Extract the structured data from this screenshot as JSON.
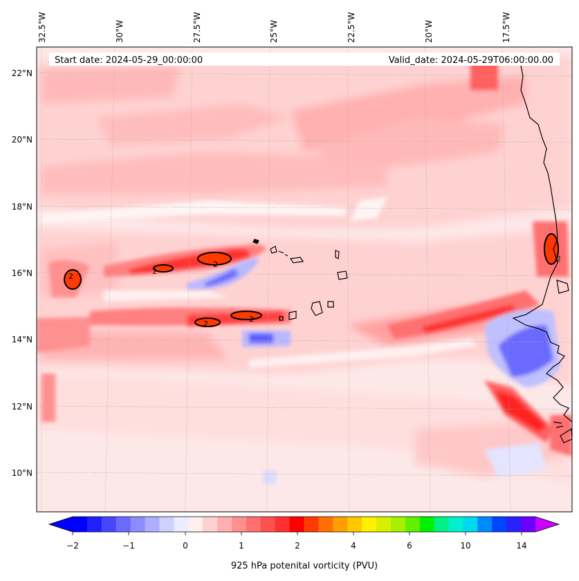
{
  "map": {
    "start_label": "Start date: 2024-05-29_00:00:00",
    "valid_label": "Valid_date: 2024-05-29T06:00:00.00",
    "lon_ticks": [
      "32.5°W",
      "30°W",
      "27.5°W",
      "25°W",
      "22.5°W",
      "20°W",
      "17.5°W"
    ],
    "lat_ticks": [
      "22°N",
      "20°N",
      "18°N",
      "16°N",
      "14°N",
      "12°N",
      "10°N"
    ],
    "contour_label": "2",
    "colors": {
      "background": "#fde6e6",
      "light_pink": "#ffd0d0",
      "pink": "#ffaaaa",
      "red": "#ff6060",
      "strong_red": "#ff2020",
      "orange_red": "#ff3a00",
      "blue_light": "#c8c8ff",
      "blue": "#6a6aff",
      "coast": "#000000"
    }
  },
  "colorbar": {
    "label": "925 hPa potenital vorticity (PVU)",
    "tick_labels": [
      "−2",
      "−1",
      "0",
      "1",
      "2",
      "4",
      "6",
      "10",
      "14"
    ],
    "colors": [
      "#0000ff",
      "#2020ff",
      "#4646ff",
      "#6a6aff",
      "#8c8cff",
      "#aeaeff",
      "#d0d0ff",
      "#ececff",
      "#ffeeee",
      "#ffd0d0",
      "#ffb0b0",
      "#ff9090",
      "#ff7070",
      "#ff5050",
      "#ff3030",
      "#ff0000",
      "#ff3a00",
      "#ff7000",
      "#ff9e00",
      "#ffc800",
      "#fff000",
      "#d8f000",
      "#a8f000",
      "#60f000",
      "#00f000",
      "#00f088",
      "#00f0d0",
      "#00d8f0",
      "#0088ff",
      "#0044ff",
      "#2a20ff",
      "#6a00ff"
    ],
    "under_color": "#0000ff",
    "over_color": "#cc00ff"
  }
}
